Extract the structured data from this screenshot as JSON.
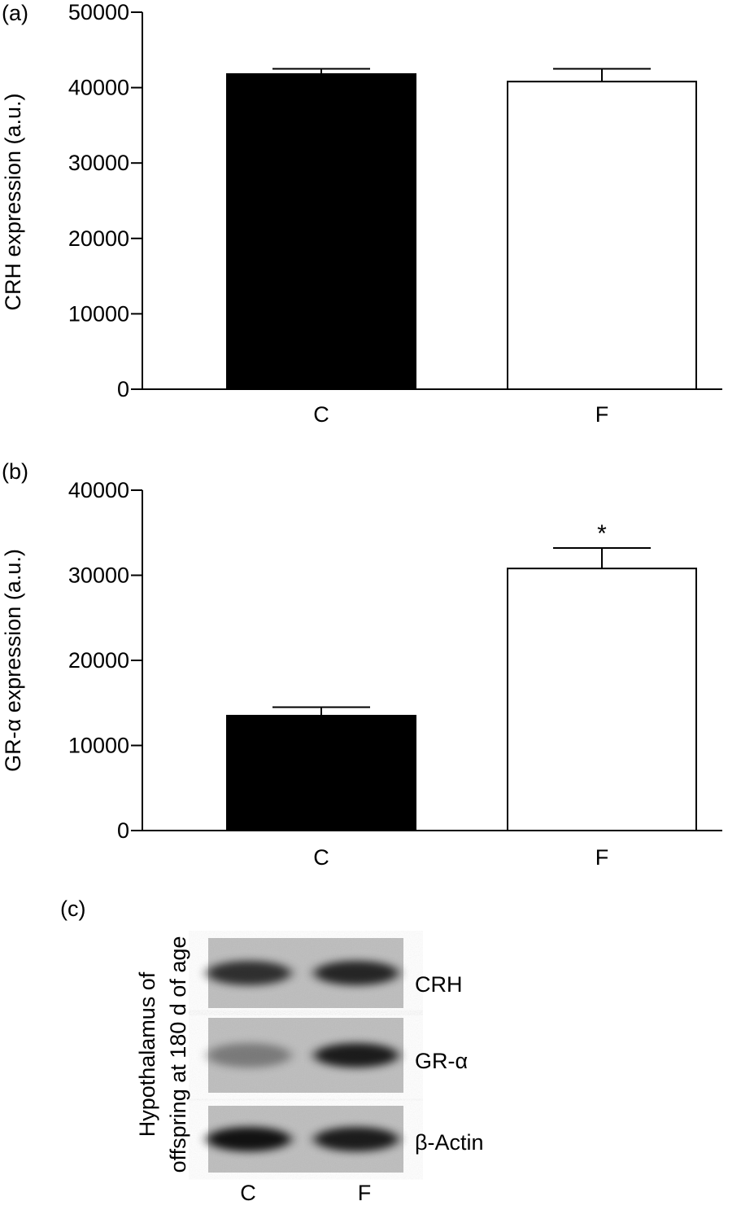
{
  "chart_data": [
    {
      "panel": "(a)",
      "type": "bar",
      "categories": [
        "C",
        "F"
      ],
      "values": [
        41800,
        40800
      ],
      "errors": [
        700,
        1700
      ],
      "bar_fills": [
        "#000000",
        "#ffffff"
      ],
      "ylabel": "CRH expression (a.u.)",
      "ylim": [
        0,
        50000
      ],
      "yticks": [
        "0",
        "10000",
        "20000",
        "30000",
        "40000",
        "50000"
      ],
      "annotations": [],
      "grid": false
    },
    {
      "panel": "(b)",
      "type": "bar",
      "categories": [
        "C",
        "F"
      ],
      "values": [
        13500,
        30800
      ],
      "errors": [
        1000,
        2400
      ],
      "bar_fills": [
        "#000000",
        "#ffffff"
      ],
      "ylabel": "GR-α expression (a.u.)",
      "ylim": [
        0,
        40000
      ],
      "yticks": [
        "0",
        "10000",
        "20000",
        "30000",
        "40000"
      ],
      "annotations": [
        "",
        "*"
      ],
      "grid": false
    }
  ],
  "blot": {
    "panel": "(c)",
    "side_label_line1": "Hypothalamus of",
    "side_label_line2": "offspring at 180 d of age",
    "rows": [
      {
        "label": "CRH",
        "intensity": [
          0.75,
          0.8
        ]
      },
      {
        "label": "GR-α",
        "intensity": [
          0.35,
          0.85
        ]
      },
      {
        "label": "β-Actin",
        "intensity": [
          0.9,
          0.85
        ]
      }
    ],
    "lanes": [
      "C",
      "F"
    ]
  }
}
